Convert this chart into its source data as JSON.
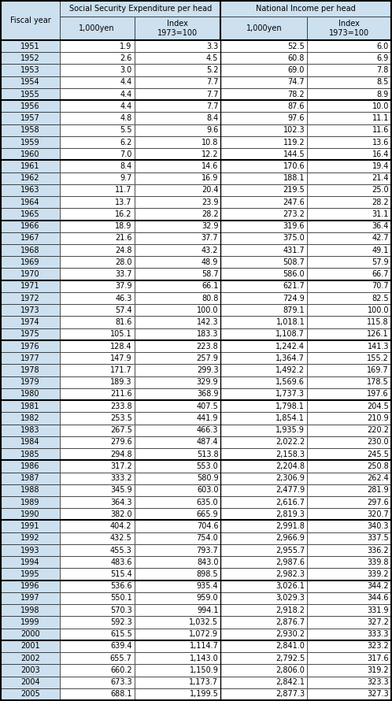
{
  "col_header1": [
    "Social Security Expenditure per head",
    "National Income per head"
  ],
  "subheaders": [
    "1,000yen",
    "Index\n1973=100",
    "1,000yen",
    "Index\n1973=100"
  ],
  "fiscal_year_label": "Fiscal year",
  "rows": [
    [
      "1951",
      "1.9",
      "3.3",
      "52.5",
      "6.0"
    ],
    [
      "1952",
      "2.6",
      "4.5",
      "60.8",
      "6.9"
    ],
    [
      "1953",
      "3.0",
      "5.2",
      "69.0",
      "7.8"
    ],
    [
      "1954",
      "4.4",
      "7.7",
      "74.7",
      "8.5"
    ],
    [
      "1955",
      "4.4",
      "7.7",
      "78.2",
      "8.9"
    ],
    [
      "1956",
      "4.4",
      "7.7",
      "87.6",
      "10.0"
    ],
    [
      "1957",
      "4.8",
      "8.4",
      "97.6",
      "11.1"
    ],
    [
      "1958",
      "5.5",
      "9.6",
      "102.3",
      "11.6"
    ],
    [
      "1959",
      "6.2",
      "10.8",
      "119.2",
      "13.6"
    ],
    [
      "1960",
      "7.0",
      "12.2",
      "144.5",
      "16.4"
    ],
    [
      "1961",
      "8.4",
      "14.6",
      "170.6",
      "19.4"
    ],
    [
      "1962",
      "9.7",
      "16.9",
      "188.1",
      "21.4"
    ],
    [
      "1963",
      "11.7",
      "20.4",
      "219.5",
      "25.0"
    ],
    [
      "1964",
      "13.7",
      "23.9",
      "247.6",
      "28.2"
    ],
    [
      "1965",
      "16.2",
      "28.2",
      "273.2",
      "31.1"
    ],
    [
      "1966",
      "18.9",
      "32.9",
      "319.6",
      "36.4"
    ],
    [
      "1967",
      "21.6",
      "37.7",
      "375.0",
      "42.7"
    ],
    [
      "1968",
      "24.8",
      "43.2",
      "431.7",
      "49.1"
    ],
    [
      "1969",
      "28.0",
      "48.9",
      "508.7",
      "57.9"
    ],
    [
      "1970",
      "33.7",
      "58.7",
      "586.0",
      "66.7"
    ],
    [
      "1971",
      "37.9",
      "66.1",
      "621.7",
      "70.7"
    ],
    [
      "1972",
      "46.3",
      "80.8",
      "724.9",
      "82.5"
    ],
    [
      "1973",
      "57.4",
      "100.0",
      "879.1",
      "100.0"
    ],
    [
      "1974",
      "81.6",
      "142.3",
      "1,018.1",
      "115.8"
    ],
    [
      "1975",
      "105.1",
      "183.3",
      "1,108.7",
      "126.1"
    ],
    [
      "1976",
      "128.4",
      "223.8",
      "1,242.4",
      "141.3"
    ],
    [
      "1977",
      "147.9",
      "257.9",
      "1,364.7",
      "155.2"
    ],
    [
      "1978",
      "171.7",
      "299.3",
      "1,492.2",
      "169.7"
    ],
    [
      "1979",
      "189.3",
      "329.9",
      "1,569.6",
      "178.5"
    ],
    [
      "1980",
      "211.6",
      "368.9",
      "1,737.3",
      "197.6"
    ],
    [
      "1981",
      "233.8",
      "407.5",
      "1,798.1",
      "204.5"
    ],
    [
      "1982",
      "253.5",
      "441.9",
      "1,854.1",
      "210.9"
    ],
    [
      "1983",
      "267.5",
      "466.3",
      "1,935.9",
      "220.2"
    ],
    [
      "1984",
      "279.6",
      "487.4",
      "2,022.2",
      "230.0"
    ],
    [
      "1985",
      "294.8",
      "513.8",
      "2,158.3",
      "245.5"
    ],
    [
      "1986",
      "317.2",
      "553.0",
      "2,204.8",
      "250.8"
    ],
    [
      "1987",
      "333.2",
      "580.9",
      "2,306.9",
      "262.4"
    ],
    [
      "1988",
      "345.9",
      "603.0",
      "2,477.9",
      "281.9"
    ],
    [
      "1989",
      "364.3",
      "635.0",
      "2,616.7",
      "297.6"
    ],
    [
      "1990",
      "382.0",
      "665.9",
      "2,819.3",
      "320.7"
    ],
    [
      "1991",
      "404.2",
      "704.6",
      "2,991.8",
      "340.3"
    ],
    [
      "1992",
      "432.5",
      "754.0",
      "2,966.9",
      "337.5"
    ],
    [
      "1993",
      "455.3",
      "793.7",
      "2,955.7",
      "336.2"
    ],
    [
      "1994",
      "483.6",
      "843.0",
      "2,987.6",
      "339.8"
    ],
    [
      "1995",
      "515.4",
      "898.5",
      "2,982.3",
      "339.2"
    ],
    [
      "1996",
      "536.6",
      "935.4",
      "3,026.1",
      "344.2"
    ],
    [
      "1997",
      "550.1",
      "959.0",
      "3,029.3",
      "344.6"
    ],
    [
      "1998",
      "570.3",
      "994.1",
      "2,918.2",
      "331.9"
    ],
    [
      "1999",
      "592.3",
      "1,032.5",
      "2,876.7",
      "327.2"
    ],
    [
      "2000",
      "615.5",
      "1,072.9",
      "2,930.2",
      "333.3"
    ],
    [
      "2001",
      "639.4",
      "1,114.7",
      "2,841.0",
      "323.2"
    ],
    [
      "2002",
      "655.7",
      "1,143.0",
      "2,792.5",
      "317.6"
    ],
    [
      "2003",
      "660.2",
      "1,150.9",
      "2,806.0",
      "319.2"
    ],
    [
      "2004",
      "673.3",
      "1,173.7",
      "2,842.1",
      "323.3"
    ],
    [
      "2005",
      "688.1",
      "1,199.5",
      "2,877.3",
      "327.3"
    ]
  ],
  "group_separators": [
    5,
    10,
    15,
    20,
    25,
    30,
    35,
    40,
    45,
    50
  ],
  "header_bg": "#cce0f0",
  "border_color": "#000000"
}
